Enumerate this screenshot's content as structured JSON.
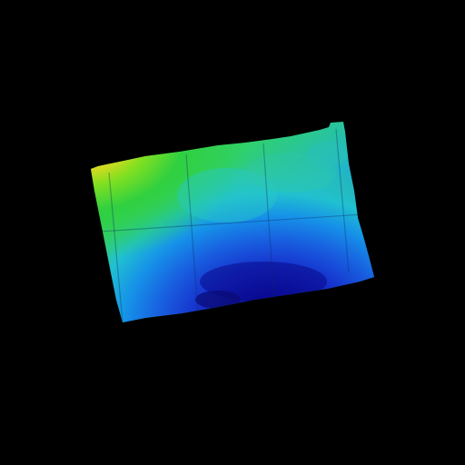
{
  "view": {
    "background": "#000000",
    "subject": "elevation-heightmap",
    "colormap": "jet",
    "colors": {
      "highest": "#e0401c",
      "high": "#f0c020",
      "upper_mid": "#40d020",
      "mid": "#20c8b0",
      "lower_mid": "#1080e0",
      "low": "#1a3ad8",
      "lowest": "#0a0a90"
    },
    "extremes": {
      "highest_area": "top-left",
      "lowest_area": "bottom-center"
    }
  }
}
